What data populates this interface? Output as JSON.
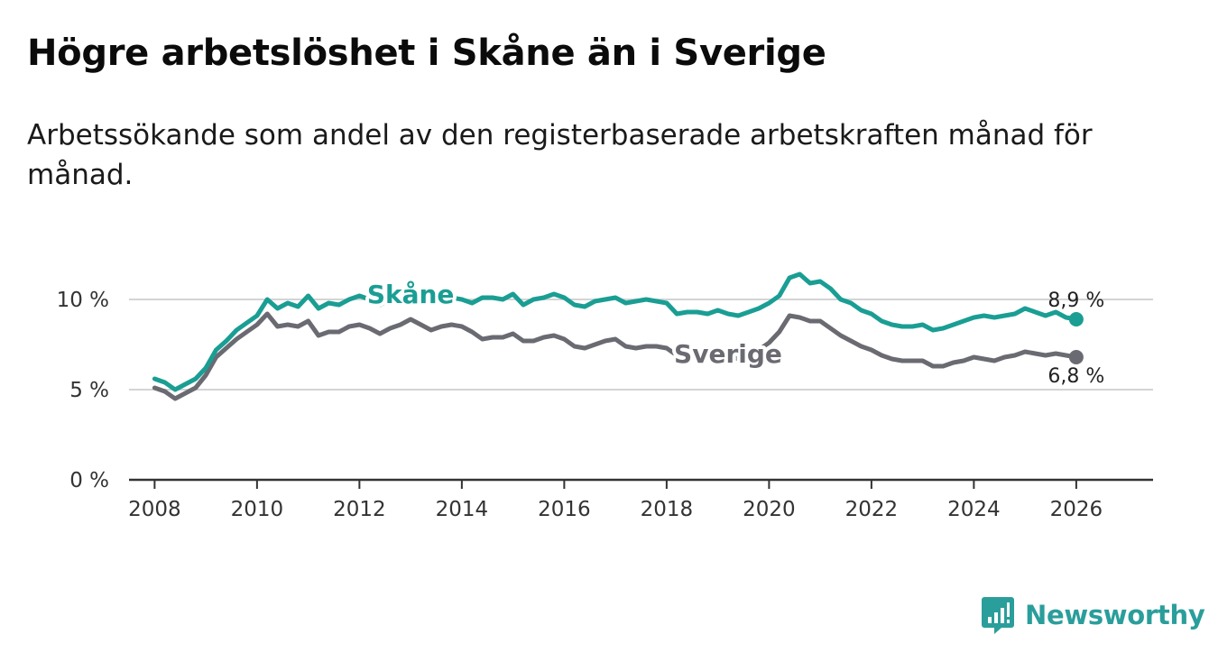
{
  "header": {
    "title": "Högre arbetslöshet i Skåne än i Sverige",
    "subtitle": "Arbetssökande som andel av den registerbaserade arbetskraften månad för månad."
  },
  "brand": {
    "name": "Newsworthy",
    "color": "#2a9e9b"
  },
  "chart_data": {
    "type": "line",
    "title": "Högre arbetslöshet i Skåne än i Sverige",
    "xlabel": "",
    "ylabel": "",
    "xlim": [
      2007.5,
      2027.5
    ],
    "ylim": [
      0,
      13
    ],
    "yticks": [
      0,
      5,
      10
    ],
    "ytick_labels": [
      "0 %",
      "5 %",
      "10 %"
    ],
    "xticks": [
      2008,
      2010,
      2012,
      2014,
      2016,
      2018,
      2020,
      2022,
      2024,
      2026
    ],
    "xtick_labels": [
      "2008",
      "2010",
      "2012",
      "2014",
      "2016",
      "2018",
      "2020",
      "2022",
      "2024",
      "2026"
    ],
    "grid": true,
    "series": [
      {
        "name": "Skåne",
        "color": "#1a9e94",
        "label_text": "Skåne",
        "end_label": "8,9 %",
        "x": [
          2008.0,
          2008.2,
          2008.4,
          2008.6,
          2008.8,
          2009.0,
          2009.2,
          2009.4,
          2009.6,
          2009.8,
          2010.0,
          2010.2,
          2010.4,
          2010.6,
          2010.8,
          2011.0,
          2011.2,
          2011.4,
          2011.6,
          2011.8,
          2012.0,
          2012.2,
          2012.4,
          2012.6,
          2012.8,
          2013.0,
          2013.2,
          2013.4,
          2013.6,
          2013.8,
          2014.0,
          2014.2,
          2014.4,
          2014.6,
          2014.8,
          2015.0,
          2015.2,
          2015.4,
          2015.6,
          2015.8,
          2016.0,
          2016.2,
          2016.4,
          2016.6,
          2016.8,
          2017.0,
          2017.2,
          2017.4,
          2017.6,
          2017.8,
          2018.0,
          2018.2,
          2018.4,
          2018.6,
          2018.8,
          2019.0,
          2019.2,
          2019.4,
          2019.6,
          2019.8,
          2020.0,
          2020.2,
          2020.4,
          2020.6,
          2020.8,
          2021.0,
          2021.2,
          2021.4,
          2021.6,
          2021.8,
          2022.0,
          2022.2,
          2022.4,
          2022.6,
          2022.8,
          2023.0,
          2023.2,
          2023.4,
          2023.6,
          2023.8,
          2024.0,
          2024.2,
          2024.4,
          2024.6,
          2024.8,
          2025.0,
          2025.2,
          2025.4,
          2025.6,
          2025.8,
          2026.0
        ],
        "values": [
          5.6,
          5.4,
          5.0,
          5.3,
          5.6,
          6.2,
          7.2,
          7.7,
          8.3,
          8.7,
          9.1,
          10.0,
          9.5,
          9.8,
          9.6,
          10.2,
          9.5,
          9.8,
          9.7,
          10.0,
          10.2,
          10.0,
          9.7,
          10.0,
          10.1,
          10.5,
          10.2,
          9.8,
          10.0,
          10.1,
          10.0,
          9.8,
          10.1,
          10.1,
          10.0,
          10.3,
          9.7,
          10.0,
          10.1,
          10.3,
          10.1,
          9.7,
          9.6,
          9.9,
          10.0,
          10.1,
          9.8,
          9.9,
          10.0,
          9.9,
          9.8,
          9.2,
          9.3,
          9.3,
          9.2,
          9.4,
          9.2,
          9.1,
          9.3,
          9.5,
          9.8,
          10.2,
          11.2,
          11.4,
          10.9,
          11.0,
          10.6,
          10.0,
          9.8,
          9.4,
          9.2,
          8.8,
          8.6,
          8.5,
          8.5,
          8.6,
          8.3,
          8.4,
          8.6,
          8.8,
          9.0,
          9.1,
          9.0,
          9.1,
          9.2,
          9.5,
          9.3,
          9.1,
          9.3,
          9.0,
          8.9
        ]
      },
      {
        "name": "Sverige",
        "color": "#6a6a72",
        "label_text": "Sverige",
        "end_label": "6,8 %",
        "x": [
          2008.0,
          2008.2,
          2008.4,
          2008.6,
          2008.8,
          2009.0,
          2009.2,
          2009.4,
          2009.6,
          2009.8,
          2010.0,
          2010.2,
          2010.4,
          2010.6,
          2010.8,
          2011.0,
          2011.2,
          2011.4,
          2011.6,
          2011.8,
          2012.0,
          2012.2,
          2012.4,
          2012.6,
          2012.8,
          2013.0,
          2013.2,
          2013.4,
          2013.6,
          2013.8,
          2014.0,
          2014.2,
          2014.4,
          2014.6,
          2014.8,
          2015.0,
          2015.2,
          2015.4,
          2015.6,
          2015.8,
          2016.0,
          2016.2,
          2016.4,
          2016.6,
          2016.8,
          2017.0,
          2017.2,
          2017.4,
          2017.6,
          2017.8,
          2018.0,
          2018.2,
          2018.4,
          2018.6,
          2018.8,
          2019.0,
          2019.2,
          2019.4,
          2019.6,
          2019.8,
          2020.0,
          2020.2,
          2020.4,
          2020.6,
          2020.8,
          2021.0,
          2021.2,
          2021.4,
          2021.6,
          2021.8,
          2022.0,
          2022.2,
          2022.4,
          2022.6,
          2022.8,
          2023.0,
          2023.2,
          2023.4,
          2023.6,
          2023.8,
          2024.0,
          2024.2,
          2024.4,
          2024.6,
          2024.8,
          2025.0,
          2025.2,
          2025.4,
          2025.6,
          2025.8,
          2026.0
        ],
        "values": [
          5.1,
          4.9,
          4.5,
          4.8,
          5.1,
          5.8,
          6.8,
          7.3,
          7.8,
          8.2,
          8.6,
          9.2,
          8.5,
          8.6,
          8.5,
          8.8,
          8.0,
          8.2,
          8.2,
          8.5,
          8.6,
          8.4,
          8.1,
          8.4,
          8.6,
          8.9,
          8.6,
          8.3,
          8.5,
          8.6,
          8.5,
          8.2,
          7.8,
          7.9,
          7.9,
          8.1,
          7.7,
          7.7,
          7.9,
          8.0,
          7.8,
          7.4,
          7.3,
          7.5,
          7.7,
          7.8,
          7.4,
          7.3,
          7.4,
          7.4,
          7.3,
          6.9,
          6.9,
          6.9,
          6.9,
          7.1,
          6.9,
          6.7,
          6.9,
          7.2,
          7.6,
          8.2,
          9.1,
          9.0,
          8.8,
          8.8,
          8.4,
          8.0,
          7.7,
          7.4,
          7.2,
          6.9,
          6.7,
          6.6,
          6.6,
          6.6,
          6.3,
          6.3,
          6.5,
          6.6,
          6.8,
          6.7,
          6.6,
          6.8,
          6.9,
          7.1,
          7.0,
          6.9,
          7.0,
          6.9,
          6.8
        ]
      }
    ]
  }
}
